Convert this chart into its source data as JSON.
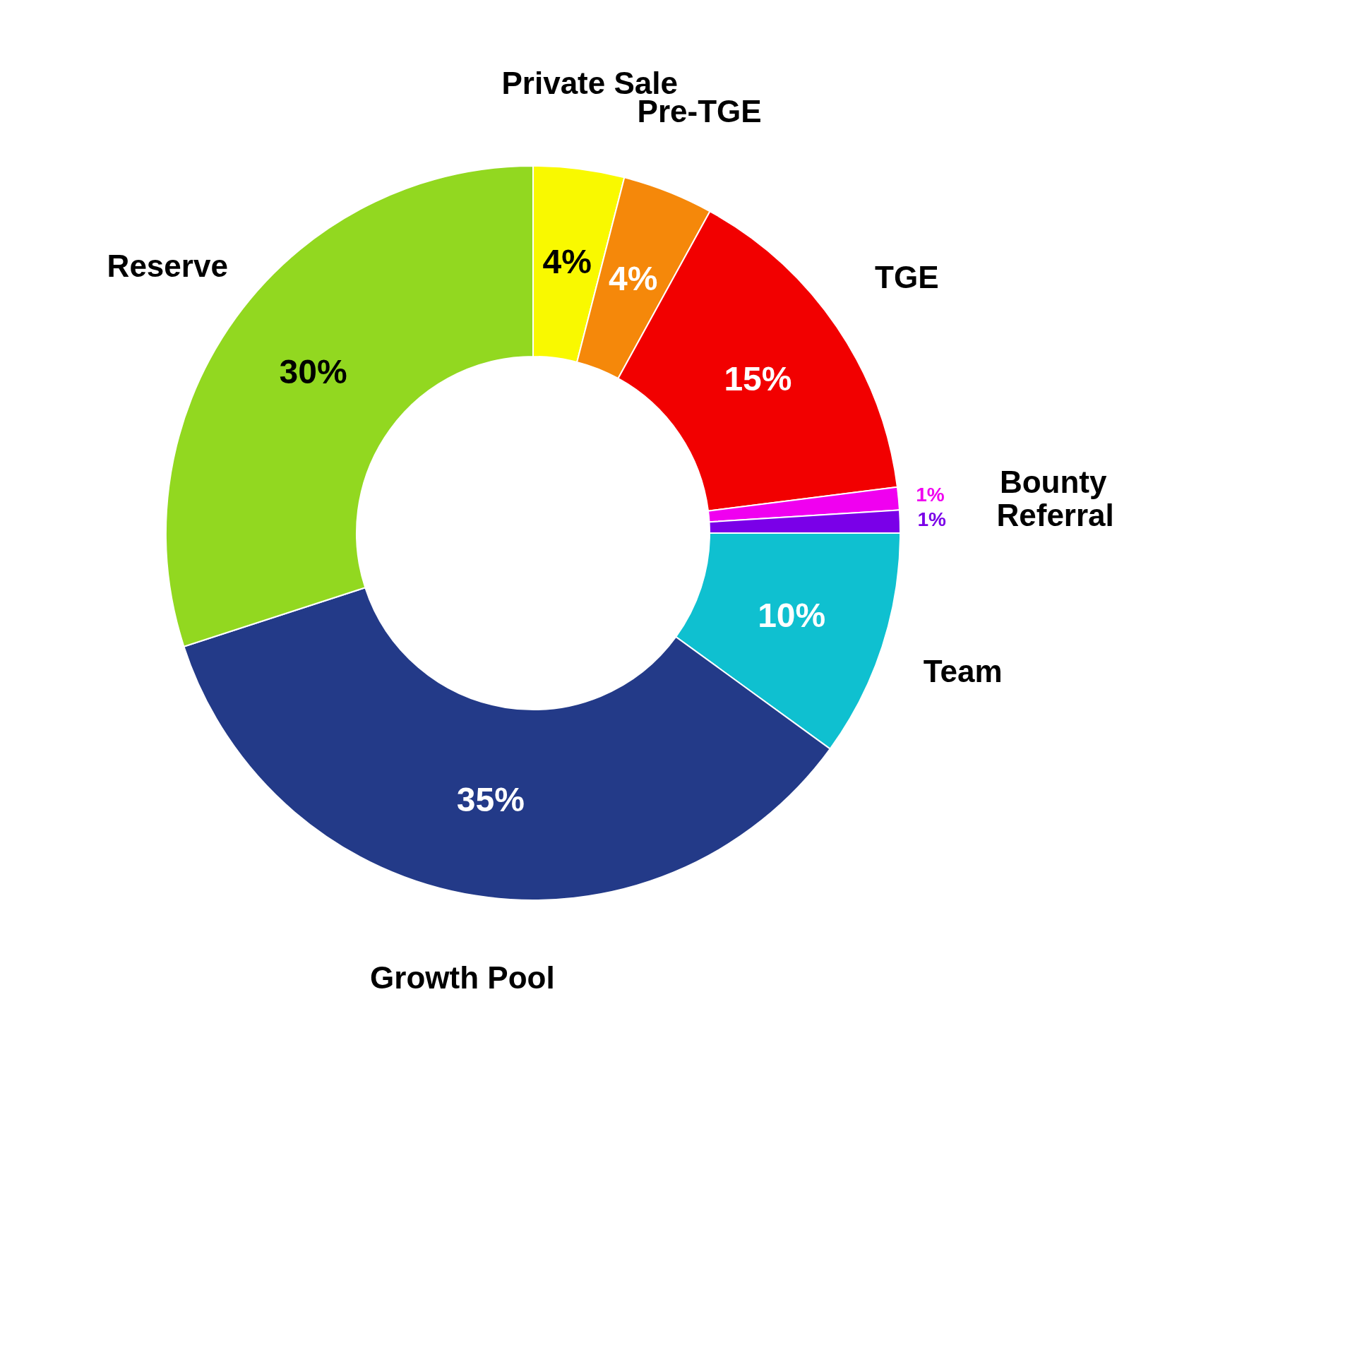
{
  "chart_data": {
    "type": "donut",
    "categories": [
      "Private Sale",
      "Pre-TGE",
      "TGE",
      "Bounty",
      "Referral",
      "Team",
      "Growth Pool",
      "Reserve"
    ],
    "values": [
      4,
      4,
      15,
      1,
      1,
      10,
      35,
      30
    ],
    "value_labels": [
      "4%",
      "4%",
      "15%",
      "1%",
      "1%",
      "10%",
      "35%",
      "30%"
    ],
    "colors": [
      "#f9f900",
      "#f5880a",
      "#f20000",
      "#f000f0",
      "#7a00e8",
      "#0fc0d0",
      "#233a88",
      "#92d820"
    ],
    "legend": false
  }
}
